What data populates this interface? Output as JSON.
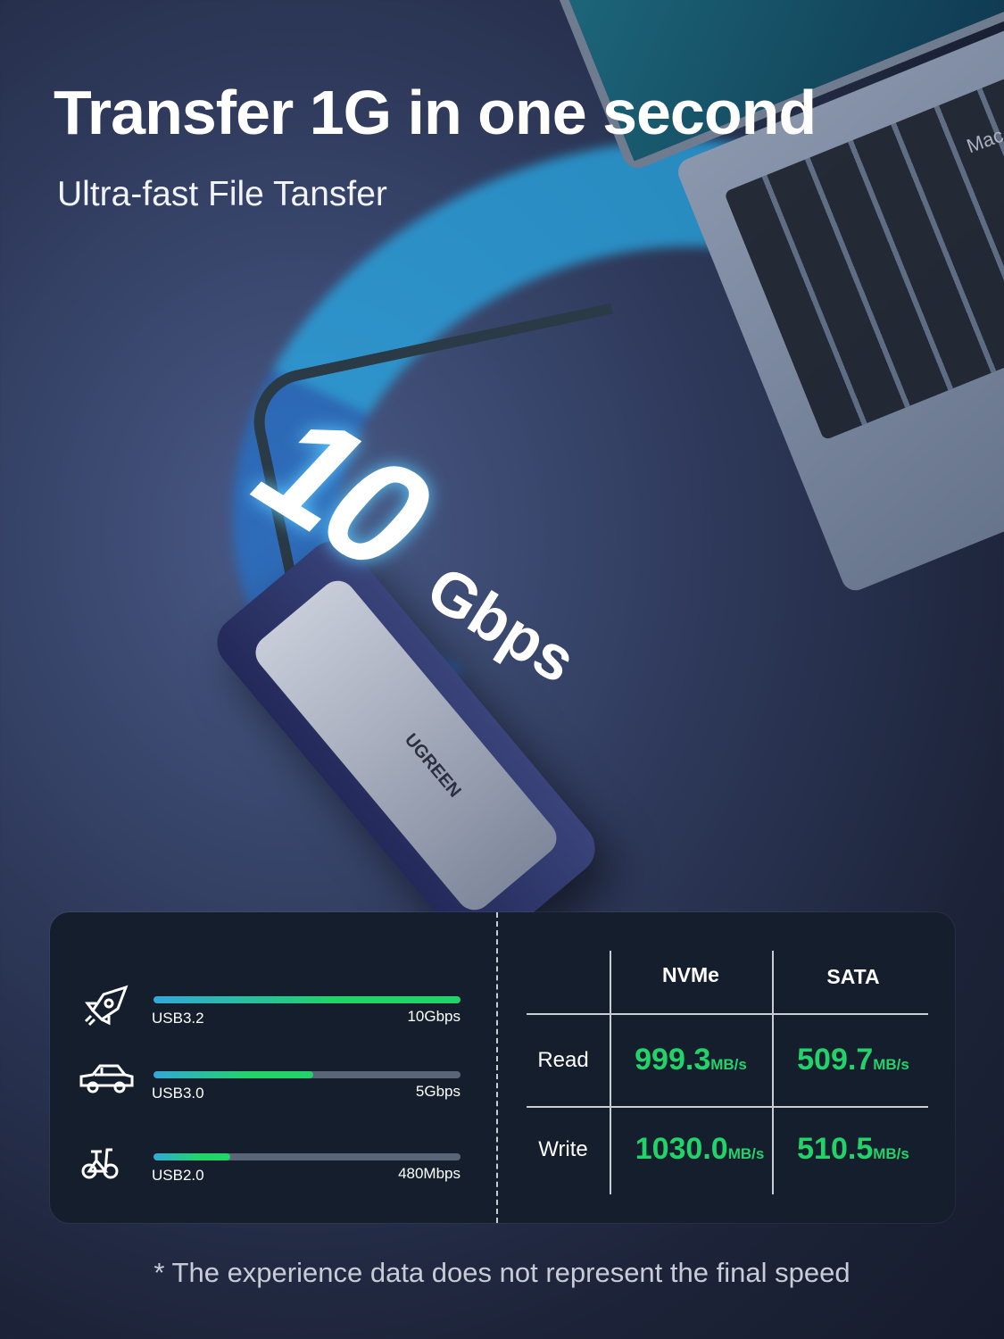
{
  "header": {
    "title": "Transfer 1G in one second",
    "subtitle": "Ultra-fast File Tansfer"
  },
  "hero": {
    "speed_number": "10",
    "speed_unit": "Gbps",
    "laptop_label": "Mac",
    "device_logo": "UGREEN"
  },
  "interfaces": [
    {
      "icon": "rocket-icon",
      "label": "USB3.2",
      "speed": "10Gbps",
      "fill_percent": 100
    },
    {
      "icon": "car-icon",
      "label": "USB3.0",
      "speed": "5Gbps",
      "fill_percent": 52
    },
    {
      "icon": "bicycle-icon",
      "label": "USB2.0",
      "speed": "480Mbps",
      "fill_percent": 25
    }
  ],
  "table": {
    "columns": [
      "NVMe",
      "SATA"
    ],
    "rows": [
      {
        "label": "Read",
        "values": [
          "999.3",
          "509.7"
        ]
      },
      {
        "label": "Write",
        "values": [
          "1030.0",
          "510.5"
        ]
      }
    ],
    "unit": "MB/s"
  },
  "colors": {
    "accent_green": "#22d36a",
    "bar_start": "#33a8d8",
    "panel": "#151e2c"
  },
  "footnote": "* The experience data does not represent the final speed"
}
